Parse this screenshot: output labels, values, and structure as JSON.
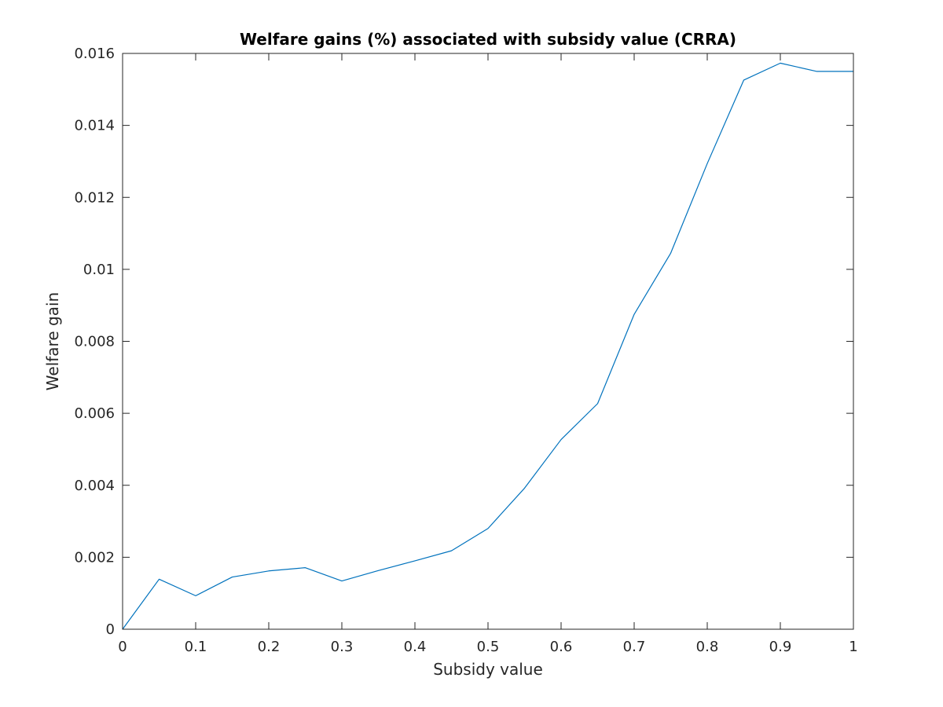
{
  "chart_data": {
    "type": "line",
    "title": "Welfare gains (%) associated with subsidy value (CRRA)",
    "xlabel": "Subsidy value",
    "ylabel": "Welfare gain",
    "xlim": [
      0,
      1
    ],
    "ylim": [
      0,
      0.016
    ],
    "xticks": [
      "0",
      "0.1",
      "0.2",
      "0.3",
      "0.4",
      "0.5",
      "0.6",
      "0.7",
      "0.8",
      "0.9",
      "1"
    ],
    "yticks": [
      "0",
      "0.002",
      "0.004",
      "0.006",
      "0.008",
      "0.01",
      "0.012",
      "0.014",
      "0.016"
    ],
    "grid": false,
    "series": [
      {
        "color": "#0072BD",
        "x": [
          0,
          0.05,
          0.1,
          0.15,
          0.2,
          0.25,
          0.3,
          0.35,
          0.4,
          0.45,
          0.5,
          0.55,
          0.6,
          0.65,
          0.7,
          0.75,
          0.8,
          0.85,
          0.9,
          0.95,
          1
        ],
        "y": [
          0,
          0.00139,
          0.00093,
          0.00145,
          0.00162,
          0.00171,
          0.00134,
          0.00163,
          0.0019,
          0.00218,
          0.0028,
          0.00392,
          0.00527,
          0.00627,
          0.00875,
          0.01045,
          0.01294,
          0.01526,
          0.01573,
          0.0155,
          0.0155
        ]
      }
    ]
  }
}
